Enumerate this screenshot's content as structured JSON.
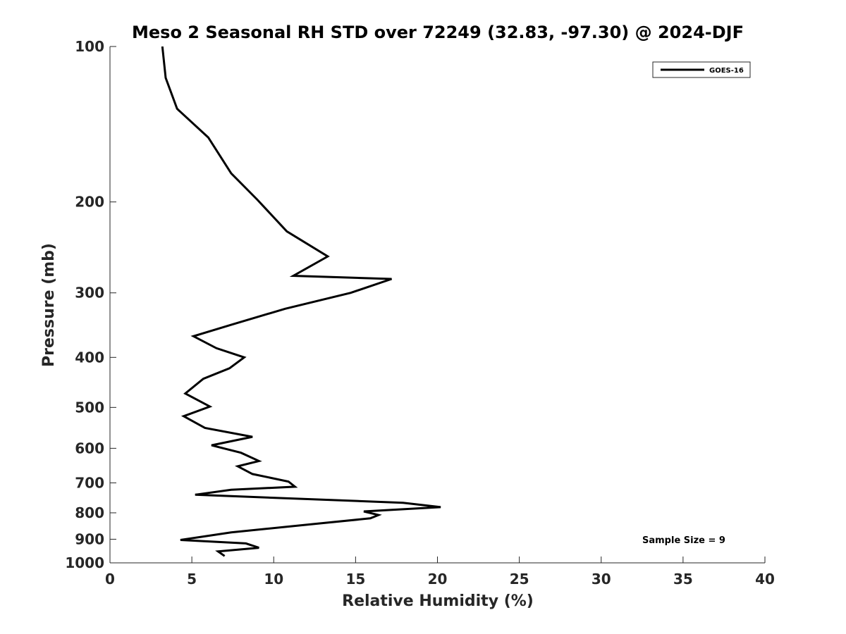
{
  "chart_data": {
    "type": "line",
    "title": "Meso 2 Seasonal RH STD over 72249 (32.83, -97.30) @ 2024-DJF",
    "xlabel": "Relative Humidity (%)",
    "ylabel": "Pressure (mb)",
    "xlim": [
      0,
      40
    ],
    "ylim": [
      100,
      1000
    ],
    "yscale": "log",
    "y_reversed": true,
    "grid": false,
    "x_ticks": [
      0,
      5,
      10,
      15,
      20,
      25,
      30,
      35,
      40
    ],
    "x_tick_labels": [
      "0",
      "5",
      "10",
      "15",
      "20",
      "25",
      "30",
      "35",
      "40"
    ],
    "y_ticks": [
      100,
      200,
      300,
      400,
      500,
      600,
      700,
      800,
      900,
      1000
    ],
    "y_tick_labels": [
      "100",
      "200",
      "300",
      "400",
      "500",
      "600",
      "700",
      "800",
      "900",
      "1000"
    ],
    "legend": {
      "placement": "top-right",
      "entries": [
        "GOES-16"
      ]
    },
    "annotation": "Sample Size = 9",
    "series": [
      {
        "name": "GOES-16",
        "color": "#000000",
        "x": [
          3.2,
          3.4,
          4.1,
          6.0,
          7.4,
          9.0,
          10.8,
          13.3,
          11.2,
          17.2,
          14.7,
          10.7,
          7.4,
          5.1,
          6.5,
          8.2,
          7.3,
          5.7,
          4.6,
          6.1,
          4.5,
          5.8,
          8.7,
          6.2,
          8.0,
          9.1,
          7.8,
          8.7,
          10.9,
          11.3,
          7.4,
          5.2,
          17.9,
          20.2,
          15.5,
          16.4,
          15.9,
          12.6,
          7.4,
          4.3,
          8.3,
          9.1,
          6.6,
          7.0
        ],
        "y": [
          100,
          115,
          132,
          150,
          176,
          198,
          228,
          255,
          278,
          282,
          300,
          322,
          346,
          364,
          384,
          400,
          420,
          440,
          470,
          498,
          520,
          548,
          570,
          592,
          612,
          635,
          650,
          673,
          696,
          712,
          722,
          738,
          765,
          780,
          795,
          808,
          820,
          840,
          873,
          903,
          917,
          935,
          950,
          970
        ]
      }
    ]
  }
}
